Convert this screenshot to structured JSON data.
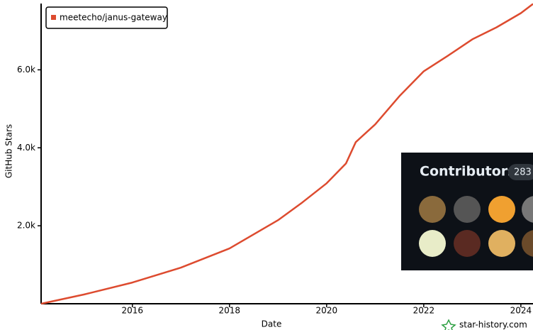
{
  "chart_data": {
    "type": "line",
    "x_label": "Date",
    "y_label": "GitHub Stars",
    "x": [
      2014.12,
      2015,
      2016,
      2017,
      2018,
      2019,
      2019.5,
      2020,
      2020.4,
      2020.6,
      2021,
      2021.5,
      2022,
      2022.5,
      2023,
      2023.5,
      2024,
      2024.25
    ],
    "series": [
      {
        "name": "meetecho/janus-gateway",
        "color": "#dd4b2f",
        "values": [
          0,
          236,
          545,
          927,
          1418,
          2145,
          2600,
          3090,
          3600,
          4145,
          4600,
          5327,
          5964,
          6364,
          6782,
          7091,
          7455,
          7690
        ]
      }
    ],
    "xlim": [
      2014.12,
      2024.25
    ],
    "xticks": [
      2016,
      2018,
      2020,
      2022,
      2024
    ],
    "ylim": [
      0,
      7700
    ],
    "yticks": [
      {
        "value": 2000,
        "label": "2.0k"
      },
      {
        "value": 4000,
        "label": "4.0k"
      },
      {
        "value": 6000,
        "label": "6.0k"
      }
    ],
    "legend": "top-left",
    "watermark": "star-history.com"
  },
  "contributors": {
    "title": "Contributors",
    "count": 283
  }
}
